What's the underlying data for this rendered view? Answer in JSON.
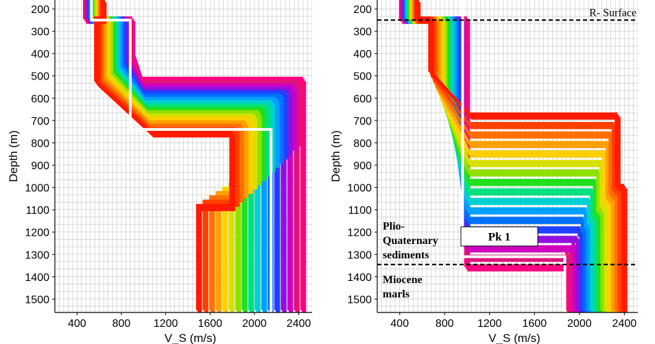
{
  "colors": {
    "grid": "#c9c9c9",
    "axis": "#000000",
    "best_model": "#ffffff",
    "boundary": "#000000",
    "palette": [
      "#ff0080",
      "#e0147a",
      "#d000c0",
      "#9010e0",
      "#2040ff",
      "#0070ff",
      "#00a0ff",
      "#00d0d0",
      "#00e080",
      "#20e020",
      "#90e000",
      "#d8e000",
      "#ffd000",
      "#ffa000",
      "#ff7000",
      "#ff4000",
      "#ff1a00"
    ]
  },
  "chart_data": [
    {
      "type": "line",
      "title": "",
      "xlabel": "V_S (m/s)",
      "ylabel": "Depth (m)",
      "xlim": [
        200,
        2520
      ],
      "ylim": [
        160,
        1560
      ],
      "xticks": [
        400,
        800,
        1200,
        1600,
        2000,
        2400
      ],
      "yticks": [
        200,
        300,
        400,
        500,
        600,
        700,
        800,
        900,
        1000,
        1100,
        1200,
        1300,
        1400,
        1500
      ],
      "grid": true,
      "ensemble": {
        "n_models": 17,
        "layer1": {
          "vs_range": [
            480,
            640
          ],
          "bottom_depth": 250
        },
        "layer2": {
          "vs_range": [
            900,
            580
          ],
          "bottom_depth_range": [
            520,
            760
          ],
          "gradient_vs_range": [
            80,
            500
          ]
        },
        "layer3": {
          "vs_range": [
            2440,
            1800
          ],
          "bottom_depth_range": [
            780,
            1090
          ]
        },
        "halfspace": {
          "vs_range": [
            2440,
            1500
          ]
        }
      },
      "best_model": {
        "vs": [
          530,
          530,
          880,
          880,
          2150,
          2150
        ],
        "depth": [
          160,
          250,
          250,
          740,
          740,
          1560
        ]
      },
      "annotations": []
    },
    {
      "type": "line",
      "title": "",
      "xlabel": "V_S (m/s)",
      "ylabel": "Depth (m)",
      "xlim": [
        200,
        2520
      ],
      "ylim": [
        160,
        1560
      ],
      "xticks": [
        400,
        800,
        1200,
        1600,
        2000,
        2400
      ],
      "yticks": [
        200,
        300,
        400,
        500,
        600,
        700,
        800,
        900,
        1000,
        1100,
        1200,
        1300,
        1400,
        1500
      ],
      "grid": true,
      "ensemble": {
        "n_models": 17,
        "layer1": {
          "vs_range": [
            420,
            560
          ],
          "bottom_depth": 250
        },
        "layer2": {
          "vs_range": [
            1000,
            680
          ],
          "bottom_depth_range": [
            1360,
            680
          ],
          "gradient_vs_range": [
            0,
            350
          ]
        },
        "layer3": {
          "vs_range": [
            1900,
            2340
          ],
          "bottom_depth_range": [
            1300,
            1000
          ]
        },
        "halfspace": {
          "vs_range": [
            1900,
            2400
          ]
        }
      },
      "best_model": {
        "vs": [
          960,
          960,
          1870,
          1870
        ],
        "depth": [
          160,
          1310,
          1310,
          1560
        ]
      },
      "boundaries": [
        {
          "depth": 250,
          "label": "R- Surface"
        },
        {
          "depth": 1345,
          "label": ""
        }
      ],
      "annotations": [
        {
          "text": "Plio-",
          "group": "upper"
        },
        {
          "text": "Quaternary",
          "group": "upper"
        },
        {
          "text": "sediments",
          "group": "upper"
        },
        {
          "text": "Miocene",
          "group": "lower"
        },
        {
          "text": "marls",
          "group": "lower"
        },
        {
          "text": "Pk 1",
          "group": "box"
        }
      ]
    }
  ]
}
